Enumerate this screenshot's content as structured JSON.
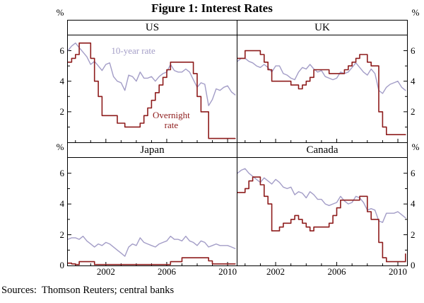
{
  "title": "Figure 1: Interest Rates",
  "sources": "Sources:  Thomson Reuters; central banks",
  "unit_label": "%",
  "colors": {
    "ten_year": "#a39dc7",
    "overnight": "#8e1c1c",
    "axis": "#000000"
  },
  "chart_data": {
    "type": "line",
    "x_start": 1999.5,
    "x_step": 0.25,
    "xlim": [
      1999.5,
      2010.6
    ],
    "ylim": [
      0,
      7
    ],
    "x_ticks": [
      2002,
      2006,
      2010
    ],
    "y_tick_rows": [
      [
        2,
        4,
        6
      ],
      [
        0,
        2,
        4,
        6
      ]
    ],
    "grid": "off",
    "legend": "inline-annotations",
    "panels": [
      {
        "title": "US",
        "series": [
          {
            "name": "10-year rate",
            "color_key": "ten_year",
            "step": false,
            "values": [
              6.0,
              6.3,
              6.5,
              6.2,
              5.9,
              5.6,
              5.1,
              5.3,
              5.0,
              4.7,
              5.1,
              5.2,
              4.3,
              4.0,
              3.9,
              3.4,
              4.4,
              4.3,
              4.0,
              4.6,
              4.2,
              4.2,
              4.3,
              4.0,
              4.3,
              4.5,
              4.6,
              5.1,
              4.7,
              4.6,
              4.6,
              4.8,
              4.6,
              4.1,
              3.6,
              3.9,
              3.8,
              2.4,
              2.8,
              3.5,
              3.4,
              3.6,
              3.7,
              3.3,
              3.1
            ]
          },
          {
            "name": "Overnight rate",
            "color_key": "overnight",
            "step": true,
            "values": [
              5.25,
              5.5,
              5.75,
              6.5,
              6.5,
              6.5,
              5.5,
              4.0,
              3.0,
              1.75,
              1.75,
              1.75,
              1.75,
              1.25,
              1.25,
              1.0,
              1.0,
              1.0,
              1.0,
              1.25,
              1.75,
              2.25,
              2.75,
              3.25,
              3.75,
              4.25,
              4.75,
              5.25,
              5.25,
              5.25,
              5.25,
              5.25,
              5.25,
              4.5,
              3.0,
              2.0,
              2.0,
              0.25,
              0.25,
              0.25,
              0.25,
              0.25,
              0.25,
              0.25,
              0.25
            ]
          }
        ],
        "annotations": [
          {
            "lines": [
              "10-year rate"
            ],
            "x": 2003.8,
            "y": 6.0,
            "color_key": "ten_year"
          },
          {
            "lines": [
              "Overnight",
              "rate"
            ],
            "x": 2006.3,
            "y": 1.45,
            "color_key": "overnight"
          }
        ]
      },
      {
        "title": "UK",
        "series": [
          {
            "name": "10-year rate",
            "color_key": "ten_year",
            "step": false,
            "values": [
              5.3,
              5.5,
              5.5,
              5.3,
              5.2,
              5.0,
              4.9,
              5.1,
              4.9,
              4.6,
              5.0,
              5.0,
              4.5,
              4.4,
              4.2,
              4.1,
              4.6,
              4.9,
              4.8,
              5.1,
              4.8,
              4.6,
              4.7,
              4.3,
              4.2,
              4.1,
              4.2,
              4.6,
              4.5,
              4.6,
              4.9,
              5.2,
              4.9,
              4.6,
              4.4,
              4.8,
              4.5,
              3.4,
              3.2,
              3.6,
              3.8,
              3.9,
              4.0,
              3.6,
              3.4
            ]
          },
          {
            "name": "Overnight rate",
            "color_key": "overnight",
            "step": true,
            "values": [
              5.5,
              5.5,
              6.0,
              6.0,
              6.0,
              6.0,
              5.75,
              5.25,
              4.75,
              4.0,
              4.0,
              4.0,
              4.0,
              4.0,
              3.75,
              3.75,
              3.5,
              3.75,
              4.0,
              4.25,
              4.75,
              4.75,
              4.75,
              4.75,
              4.5,
              4.5,
              4.5,
              4.5,
              4.75,
              5.0,
              5.25,
              5.5,
              5.75,
              5.75,
              5.25,
              5.0,
              5.0,
              2.0,
              1.0,
              0.5,
              0.5,
              0.5,
              0.5,
              0.5,
              0.5
            ]
          }
        ],
        "annotations": []
      },
      {
        "title": "Japan",
        "series": [
          {
            "name": "10-year rate",
            "color_key": "ten_year",
            "step": false,
            "values": [
              1.7,
              1.8,
              1.8,
              1.7,
              1.9,
              1.6,
              1.4,
              1.2,
              1.4,
              1.3,
              1.5,
              1.4,
              1.2,
              1.0,
              0.8,
              0.6,
              1.2,
              1.4,
              1.3,
              1.8,
              1.5,
              1.4,
              1.3,
              1.2,
              1.4,
              1.5,
              1.6,
              1.9,
              1.7,
              1.7,
              1.6,
              1.9,
              1.6,
              1.5,
              1.3,
              1.6,
              1.5,
              1.2,
              1.3,
              1.4,
              1.3,
              1.3,
              1.3,
              1.2,
              1.1
            ]
          },
          {
            "name": "Overnight rate",
            "color_key": "overnight",
            "step": true,
            "values": [
              0.15,
              0.1,
              0.05,
              0.25,
              0.25,
              0.25,
              0.25,
              0.0,
              0.0,
              0.0,
              0.0,
              0.0,
              0.0,
              0.0,
              0.0,
              0.0,
              0.0,
              0.0,
              0.0,
              0.0,
              0.0,
              0.0,
              0.0,
              0.0,
              0.0,
              0.0,
              0.0,
              0.25,
              0.25,
              0.25,
              0.5,
              0.5,
              0.5,
              0.5,
              0.5,
              0.5,
              0.5,
              0.3,
              0.1,
              0.1,
              0.1,
              0.1,
              0.1,
              0.1,
              0.1
            ]
          }
        ],
        "annotations": []
      },
      {
        "title": "Canada",
        "series": [
          {
            "name": "10-year rate",
            "color_key": "ten_year",
            "step": false,
            "values": [
              6.0,
              6.2,
              6.3,
              6.0,
              5.8,
              5.6,
              5.4,
              5.7,
              5.5,
              5.3,
              5.6,
              5.4,
              5.1,
              5.0,
              5.1,
              4.6,
              4.8,
              4.7,
              4.4,
              4.8,
              4.6,
              4.3,
              4.3,
              4.0,
              3.9,
              4.0,
              4.1,
              4.5,
              4.2,
              4.0,
              4.1,
              4.5,
              4.4,
              4.1,
              3.6,
              3.7,
              3.6,
              2.9,
              2.8,
              3.4,
              3.4,
              3.4,
              3.5,
              3.3,
              3.1
            ]
          },
          {
            "name": "Overnight rate",
            "color_key": "overnight",
            "step": true,
            "values": [
              4.75,
              4.75,
              5.0,
              5.5,
              5.75,
              5.75,
              5.25,
              4.5,
              4.0,
              2.25,
              2.25,
              2.5,
              2.75,
              2.75,
              3.0,
              3.25,
              3.0,
              2.75,
              2.5,
              2.25,
              2.5,
              2.5,
              2.5,
              2.5,
              2.75,
              3.25,
              3.75,
              4.25,
              4.25,
              4.25,
              4.25,
              4.25,
              4.5,
              4.5,
              3.5,
              3.0,
              3.0,
              1.5,
              0.5,
              0.25,
              0.25,
              0.25,
              0.25,
              0.25,
              0.75
            ]
          }
        ],
        "annotations": []
      }
    ]
  }
}
